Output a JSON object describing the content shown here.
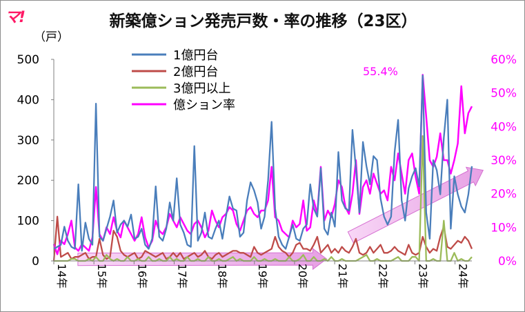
{
  "logo": {
    "text": "マ!"
  },
  "chart_data": {
    "type": "line",
    "title": "新築億ション発売戸数・率の推移（23区）",
    "y_unit_label": "（戸）",
    "y_ticks": [
      "0",
      "100",
      "200",
      "300",
      "400",
      "500"
    ],
    "y2_ticks": [
      "0%",
      "10%",
      "20%",
      "30%",
      "40%",
      "50%",
      "60%"
    ],
    "ylim": [
      0,
      500
    ],
    "y2lim": [
      0,
      60
    ],
    "x_ticks": [
      "14年",
      "15年",
      "16年",
      "17年",
      "18年",
      "19年",
      "20年",
      "21年",
      "22年",
      "23年",
      "24年"
    ],
    "x_range": [
      2014.0,
      2024.42
    ],
    "annotation": "55.4%",
    "series": [
      {
        "name": "1億円台",
        "color": "#4a7ebb",
        "axis": "left",
        "values": [
          30,
          35,
          40,
          85,
          50,
          35,
          30,
          190,
          25,
          95,
          55,
          40,
          390,
          60,
          50,
          80,
          110,
          150,
          70,
          90,
          100,
          85,
          115,
          55,
          60,
          80,
          40,
          30,
          55,
          185,
          60,
          50,
          80,
          145,
          100,
          205,
          90,
          70,
          40,
          35,
          285,
          50,
          70,
          120,
          60,
          55,
          80,
          100,
          55,
          110,
          160,
          130,
          125,
          60,
          70,
          150,
          195,
          175,
          145,
          80,
          110,
          200,
          345,
          130,
          60,
          40,
          30,
          60,
          90,
          55,
          50,
          80,
          90,
          190,
          130,
          110,
          230,
          80,
          65,
          120,
          85,
          270,
          150,
          130,
          125,
          325,
          230,
          120,
          295,
          235,
          190,
          260,
          250,
          155,
          110,
          90,
          110,
          270,
          350,
          150,
          100,
          180,
          210,
          230,
          185,
          460,
          120,
          55,
          250,
          225,
          165,
          305,
          400,
          80,
          210,
          165,
          135,
          120,
          165,
          235
        ]
      },
      {
        "name": "2億円台",
        "color": "#be4b48",
        "axis": "left",
        "values": [
          0,
          110,
          10,
          15,
          20,
          5,
          10,
          10,
          15,
          20,
          5,
          10,
          10,
          55,
          15,
          5,
          10,
          75,
          60,
          25,
          15,
          10,
          15,
          20,
          5,
          10,
          25,
          20,
          15,
          10,
          15,
          20,
          5,
          10,
          20,
          10,
          20,
          5,
          10,
          15,
          20,
          10,
          15,
          25,
          10,
          5,
          15,
          20,
          10,
          15,
          20,
          25,
          25,
          20,
          20,
          15,
          10,
          35,
          20,
          15,
          20,
          25,
          30,
          60,
          35,
          25,
          20,
          10,
          20,
          40,
          45,
          30,
          30,
          25,
          40,
          60,
          20,
          30,
          40,
          20,
          30,
          20,
          35,
          25,
          20,
          35,
          55,
          20,
          15,
          20,
          35,
          20,
          30,
          40,
          20,
          20,
          25,
          35,
          25,
          20,
          15,
          40,
          20,
          15,
          20,
          60,
          35,
          20,
          30,
          25,
          60,
          85,
          35,
          30,
          40,
          50,
          45,
          60,
          50,
          30
        ]
      },
      {
        "name": "3億円以上",
        "color": "#9bbb59",
        "axis": "left",
        "values": [
          0,
          0,
          0,
          0,
          0,
          5,
          5,
          0,
          0,
          0,
          5,
          0,
          10,
          0,
          0,
          15,
          5,
          0,
          5,
          0,
          0,
          10,
          0,
          0,
          5,
          0,
          0,
          10,
          0,
          0,
          5,
          0,
          0,
          10,
          0,
          5,
          0,
          0,
          10,
          0,
          0,
          5,
          0,
          0,
          10,
          0,
          0,
          5,
          0,
          0,
          5,
          10,
          0,
          5,
          0,
          0,
          0,
          10,
          0,
          0,
          5,
          0,
          0,
          5,
          0,
          0,
          0,
          10,
          0,
          0,
          5,
          15,
          0,
          0,
          10,
          0,
          0,
          5,
          0,
          10,
          0,
          0,
          5,
          0,
          0,
          0,
          0,
          5,
          10,
          15,
          0,
          0,
          5,
          0,
          0,
          0,
          0,
          5,
          10,
          0,
          0,
          0,
          10,
          10,
          0,
          310,
          0,
          0,
          5,
          0,
          0,
          100,
          0,
          0,
          20,
          0,
          5,
          0,
          0,
          10
        ]
      },
      {
        "name": "億ション率",
        "color": "#ff00ff",
        "axis": "right",
        "values": [
          5,
          2,
          6,
          5,
          8,
          12,
          4,
          3,
          5,
          4,
          3,
          7,
          22,
          8,
          6,
          10,
          8,
          13,
          9,
          7,
          12,
          10,
          8,
          6,
          8,
          13,
          7,
          4,
          6,
          12,
          9,
          8,
          10,
          14,
          12,
          10,
          13,
          11,
          9,
          8,
          11,
          12,
          10,
          7,
          9,
          15,
          12,
          10,
          13,
          14,
          16,
          15,
          11,
          9,
          12,
          15,
          16,
          14,
          13,
          15,
          15,
          18,
          28,
          13,
          12,
          9,
          8,
          7,
          12,
          10,
          11,
          18,
          9,
          10,
          18,
          14,
          28,
          12,
          15,
          13,
          17,
          24,
          22,
          16,
          14,
          20,
          30,
          14,
          22,
          24,
          20,
          26,
          23,
          20,
          21,
          18,
          28,
          24,
          32,
          26,
          20,
          30,
          32,
          25,
          20,
          55.4,
          43,
          30,
          28,
          31,
          38,
          30,
          30,
          26,
          30,
          35,
          52,
          38,
          44,
          46
        ]
      }
    ],
    "legend_placement": "top-left",
    "arrows": [
      {
        "from": [
          2014.6,
          4
        ],
        "to": [
          2020.8,
          5
        ],
        "axis": "left"
      },
      {
        "from": [
          2021.4,
          7
        ],
        "to": [
          2024.7,
          27
        ],
        "axis": "right"
      }
    ]
  }
}
